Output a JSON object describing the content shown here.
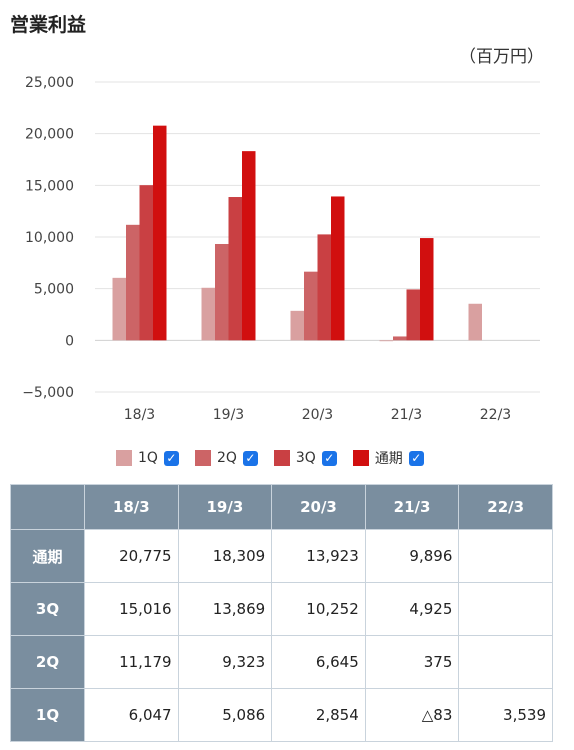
{
  "header": {
    "title": "営業利益",
    "unit": "（百万円）"
  },
  "chart_data": {
    "type": "bar",
    "categories": [
      "18/3",
      "19/3",
      "20/3",
      "21/3",
      "22/3"
    ],
    "series": [
      {
        "name": "1Q",
        "color": "#d9a0a0",
        "values": [
          6047,
          5086,
          2854,
          -83,
          3539
        ]
      },
      {
        "name": "2Q",
        "color": "#cc6466",
        "values": [
          11179,
          9323,
          6645,
          375,
          null
        ]
      },
      {
        "name": "3Q",
        "color": "#c94043",
        "values": [
          15016,
          13869,
          10252,
          4925,
          null
        ]
      },
      {
        "name": "通期",
        "color": "#d10f0f",
        "values": [
          20775,
          18309,
          13923,
          9896,
          null
        ]
      }
    ],
    "ylim": [
      -5000,
      25000
    ],
    "yticks": [
      25000,
      20000,
      15000,
      10000,
      5000,
      0,
      -5000
    ],
    "ytick_labels": [
      "25,000",
      "20,000",
      "15,000",
      "10,000",
      "5,000",
      "0",
      "−5,000"
    ],
    "grid": true,
    "legend": "bottom"
  },
  "legend_check": "✓",
  "table": {
    "columns": [
      "",
      "18/3",
      "19/3",
      "20/3",
      "21/3",
      "22/3"
    ],
    "rows": [
      {
        "label": "通期",
        "values": [
          "20,775",
          "18,309",
          "13,923",
          "9,896",
          ""
        ]
      },
      {
        "label": "3Q",
        "values": [
          "15,016",
          "13,869",
          "10,252",
          "4,925",
          ""
        ]
      },
      {
        "label": "2Q",
        "values": [
          "11,179",
          "9,323",
          "6,645",
          "375",
          ""
        ]
      },
      {
        "label": "1Q",
        "values": [
          "6,047",
          "5,086",
          "2,854",
          "△83",
          "3,539"
        ]
      }
    ]
  }
}
